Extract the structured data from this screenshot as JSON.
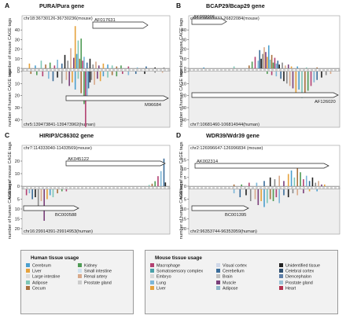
{
  "chart_data": [
    {
      "type": "bar",
      "letter": "A",
      "title": "PURA/Pura gene",
      "mouse_coord": "chr18:36730126-36730236(mouse)",
      "human_coord": "chr5:139473841-139473962(human)",
      "mouse_accession": "AF017631",
      "human_accession": "M96684",
      "mouse_ylabel": "number of mouse CAGE tags",
      "human_ylabel": "number of human CAGE tags",
      "mouse_ticks": [
        0,
        10,
        20,
        30,
        40
      ],
      "human_ticks": [
        0,
        10,
        20,
        30,
        40
      ],
      "mouse_ylim": [
        0,
        45
      ],
      "human_ylim": [
        0,
        45
      ],
      "mouse_x": [
        0.05,
        0.09,
        0.13,
        0.16,
        0.19,
        0.22,
        0.24,
        0.27,
        0.29,
        0.31,
        0.33,
        0.35,
        0.36,
        0.37,
        0.38,
        0.39,
        0.4,
        0.41,
        0.42,
        0.44,
        0.46,
        0.48,
        0.5,
        0.52,
        0.55,
        0.58,
        0.61,
        0.64,
        0.67,
        0.72,
        0.78,
        0.84,
        0.9,
        0.96
      ],
      "mouse_values": [
        5,
        3,
        8,
        4,
        6,
        3,
        9,
        5,
        14,
        8,
        21,
        11,
        44,
        15,
        29,
        10,
        31,
        8,
        12,
        6,
        10,
        4,
        7,
        3,
        5,
        4,
        3,
        2,
        3,
        2,
        1,
        2,
        1,
        1
      ],
      "human_x": [
        0.06,
        0.1,
        0.14,
        0.18,
        0.21,
        0.24,
        0.27,
        0.3,
        0.32,
        0.34,
        0.36,
        0.38,
        0.4,
        0.42,
        0.43,
        0.44,
        0.45,
        0.46,
        0.47,
        0.49,
        0.51,
        0.53,
        0.55,
        0.58,
        0.61,
        0.64,
        0.68,
        0.72,
        0.77,
        0.83,
        0.9,
        0.95
      ],
      "human_values": [
        2,
        3,
        4,
        6,
        8,
        5,
        10,
        7,
        12,
        9,
        15,
        6,
        18,
        27,
        46,
        21,
        14,
        9,
        7,
        11,
        6,
        8,
        4,
        5,
        3,
        4,
        2,
        3,
        2,
        2,
        1,
        1
      ]
    },
    {
      "type": "bar",
      "letter": "B",
      "title": "BCAP29/Bcap29 gene",
      "mouse_coord": "chr12:26821833-26822084(mouse)",
      "human_coord": "chr7:10681460-106814944(human)",
      "mouse_accession": "AK009006",
      "human_accession": "AF126020",
      "mouse_ylabel": "number of mouse CAGE tags",
      "human_ylabel": "number of human CAGE tags",
      "mouse_ticks": [
        0,
        10,
        20,
        30,
        40
      ],
      "human_ticks": [
        0,
        10,
        20,
        30,
        40
      ],
      "mouse_ylim": [
        0,
        45
      ],
      "human_ylim": [
        0,
        45
      ],
      "mouse_x": [
        0.1,
        0.3,
        0.4,
        0.42,
        0.44,
        0.46,
        0.47,
        0.48,
        0.49,
        0.5,
        0.51,
        0.52,
        0.53,
        0.54,
        0.55,
        0.56,
        0.57,
        0.58,
        0.59,
        0.6,
        0.62,
        0.64,
        0.66,
        0.68,
        0.72,
        0.78,
        0.85
      ],
      "mouse_values": [
        1,
        2,
        3,
        7,
        12,
        8,
        19,
        10,
        15,
        22,
        17,
        12,
        24,
        9,
        14,
        6,
        11,
        5,
        8,
        4,
        6,
        3,
        4,
        2,
        2,
        1,
        1
      ],
      "human_x": [
        0.52,
        0.55,
        0.58,
        0.61,
        0.63,
        0.65,
        0.67,
        0.69,
        0.71,
        0.73,
        0.75,
        0.77,
        0.79,
        0.81,
        0.83,
        0.85,
        0.88,
        0.91,
        0.94
      ],
      "human_values": [
        2,
        3,
        4,
        6,
        8,
        10,
        12,
        14,
        18,
        15,
        22,
        19,
        16,
        12,
        9,
        7,
        5,
        3,
        2
      ]
    },
    {
      "type": "bar",
      "letter": "C",
      "title": "HIRIP3/C86302 gene",
      "mouse_coord": "chr7:114333040-11433569(mouse)",
      "human_coord": "chr16:29914391-29914953(human)",
      "mouse_accession": "AK045122",
      "human_accession": "BC000588",
      "mouse_ylabel": "number of mouse CAGE tags",
      "human_ylabel": "number of human CAGE tags",
      "mouse_ticks": [
        0,
        10,
        20
      ],
      "human_ticks": [
        5,
        10,
        15,
        20
      ],
      "mouse_ylim": [
        0,
        25
      ],
      "human_ylim": [
        0,
        22
      ],
      "mouse_x": [
        0.86,
        0.88,
        0.9,
        0.92,
        0.94,
        0.96,
        0.97
      ],
      "mouse_values": [
        1,
        2,
        4,
        8,
        12,
        22,
        3
      ],
      "human_x": [
        0.03,
        0.05,
        0.07,
        0.09,
        0.11,
        0.13,
        0.15,
        0.17,
        0.19,
        0.21,
        0.24,
        0.27,
        0.3
      ],
      "human_values": [
        3,
        2,
        5,
        4,
        9,
        6,
        16,
        5,
        3,
        4,
        2,
        1,
        1
      ]
    },
    {
      "type": "bar",
      "letter": "D",
      "title": "WDR39/Wdr39  gene",
      "mouse_coord": "chr2:126996647-126996834 (mouse)",
      "human_coord": "chr2:96353744-96353959(human)",
      "mouse_accession": "AK002314",
      "human_accession": "BC001395",
      "mouse_ylabel": "number of mouse CAGE tags",
      "human_ylabel": "number of human CAGE tags",
      "mouse_ticks": [
        0,
        5,
        10,
        15
      ],
      "human_ticks": [
        5,
        10,
        15,
        20
      ],
      "mouse_ylim": [
        0,
        18
      ],
      "human_ylim": [
        0,
        22
      ],
      "mouse_x": [
        0.3,
        0.35,
        0.4,
        0.45,
        0.5,
        0.54,
        0.57,
        0.6,
        0.63,
        0.66,
        0.68,
        0.7,
        0.72,
        0.74,
        0.76,
        0.78,
        0.8,
        0.82,
        0.84,
        0.86,
        0.88,
        0.9
      ],
      "mouse_values": [
        1,
        1,
        2,
        2,
        3,
        5,
        4,
        6,
        3,
        7,
        9,
        5,
        12,
        8,
        4,
        6,
        3,
        5,
        2,
        3,
        1,
        1
      ],
      "human_x": [
        0.3,
        0.34,
        0.38,
        0.41,
        0.44,
        0.46,
        0.48,
        0.5,
        0.52,
        0.54,
        0.56,
        0.58,
        0.6,
        0.63,
        0.66,
        0.69,
        0.72,
        0.76,
        0.8,
        0.85
      ],
      "human_values": [
        2,
        4,
        3,
        6,
        5,
        8,
        6,
        9,
        7,
        5,
        6,
        4,
        7,
        3,
        4,
        2,
        3,
        2,
        1,
        1
      ]
    }
  ],
  "legend_human": {
    "title": "Human tissue usage",
    "items": [
      {
        "label": "Cerebrum",
        "color": "#4b9fce"
      },
      {
        "label": "Liver",
        "color": "#e6a23c"
      },
      {
        "label": "Large intestine",
        "color": "#dcdcdc"
      },
      {
        "label": "Adipose",
        "color": "#7ec7b6"
      },
      {
        "label": "Cecum",
        "color": "#a9713f"
      },
      {
        "label": "Kidney",
        "color": "#4f9b55"
      },
      {
        "label": "Small intestine",
        "color": "#cfe1ee"
      },
      {
        "label": "Renal artery",
        "color": "#d8a98a"
      },
      {
        "label": "Prostate gland",
        "color": "#cccccc"
      }
    ]
  },
  "legend_mouse": {
    "title": "Mouse tissue usage",
    "items": [
      {
        "label": "Macrophage",
        "color": "#b34172"
      },
      {
        "label": "Somatosensory complex",
        "color": "#4aa1a8"
      },
      {
        "label": "Embryo",
        "color": "#d9d9d9"
      },
      {
        "label": "Lung",
        "color": "#7cb6d8"
      },
      {
        "label": "Liver",
        "color": "#e6a23c"
      },
      {
        "label": "Visual cortex",
        "color": "#cfd8e8"
      },
      {
        "label": "Cerebellum",
        "color": "#3b6d9a"
      },
      {
        "label": "Brain",
        "color": "#c0c0c0"
      },
      {
        "label": "Muscle",
        "color": "#7a3f7a"
      },
      {
        "label": "Adipose",
        "color": "#8fb7c9"
      },
      {
        "label": "Unidentified tissue",
        "color": "#222222"
      },
      {
        "label": "Celebral cortex",
        "color": "#2f4f6f"
      },
      {
        "label": "Diencephalon",
        "color": "#5e7fa8"
      },
      {
        "label": "Prostate gland",
        "color": "#9cc2d6"
      },
      {
        "label": "Heart",
        "color": "#b3324f"
      }
    ]
  }
}
